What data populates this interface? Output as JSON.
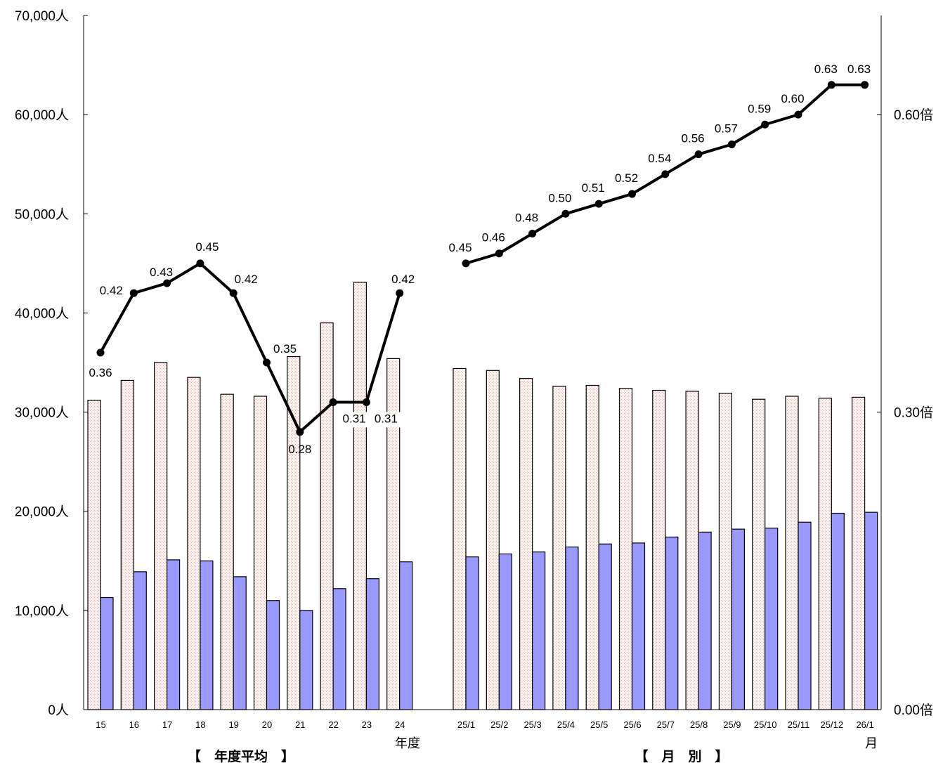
{
  "chart_data": {
    "type": "bar+line",
    "left_axis": {
      "ylim": [
        0,
        70000
      ],
      "ticks": [
        "0人",
        "10,000人",
        "20,000人",
        "30,000人",
        "40,000人",
        "50,000人",
        "60,000人",
        "70,000人"
      ]
    },
    "right_axis": {
      "ylim": [
        0,
        0.7
      ],
      "ticks": [
        "0.00倍",
        "0.30倍",
        "0.60倍"
      ]
    },
    "groups": [
      {
        "label": "【　年度平均　】",
        "axis_label": "年度",
        "categories": [
          "15",
          "16",
          "17",
          "18",
          "19",
          "20",
          "21",
          "22",
          "23",
          "24"
        ],
        "bar_series_1": [
          31200,
          33200,
          35000,
          33500,
          31800,
          31600,
          35600,
          39000,
          43100,
          35400
        ],
        "bar_series_2": [
          11300,
          13900,
          15100,
          15000,
          13400,
          11000,
          10000,
          12200,
          13200,
          14900
        ],
        "line_values": [
          0.36,
          0.42,
          0.43,
          0.45,
          0.42,
          0.35,
          0.28,
          0.31,
          0.31,
          0.42
        ],
        "line_labels": [
          "0.36",
          "0.42",
          "0.43",
          "0.45",
          "0.42",
          "0.35",
          "0.28",
          "0.31",
          "0.31",
          "0.42"
        ]
      },
      {
        "label": "【　月　別　】",
        "axis_label": "月",
        "categories": [
          "25/1",
          "25/2",
          "25/3",
          "25/4",
          "25/5",
          "25/6",
          "25/7",
          "25/8",
          "25/9",
          "25/10",
          "25/11",
          "25/12",
          "26/1"
        ],
        "bar_series_1": [
          34400,
          34200,
          33400,
          32600,
          32700,
          32400,
          32200,
          32100,
          31900,
          31300,
          31600,
          31400,
          31500
        ],
        "bar_series_2": [
          15400,
          15700,
          15900,
          16400,
          16700,
          16800,
          17400,
          17900,
          18200,
          18300,
          18900,
          19800,
          19900
        ],
        "line_values": [
          0.45,
          0.46,
          0.48,
          0.5,
          0.51,
          0.52,
          0.54,
          0.56,
          0.57,
          0.59,
          0.6,
          0.63,
          0.63
        ],
        "line_labels": [
          "0.45",
          "0.46",
          "0.48",
          "0.50",
          "0.51",
          "0.52",
          "0.54",
          "0.56",
          "0.57",
          "0.59",
          "0.60",
          "0.63",
          "0.63"
        ]
      }
    ],
    "colors": {
      "bar_series_1_fill": "#fdf4f2",
      "bar_series_1_dots": "#e8a8a8",
      "bar_series_2_fill": "#9999ff",
      "line": "#000000"
    },
    "grid": false,
    "legend": "none"
  }
}
